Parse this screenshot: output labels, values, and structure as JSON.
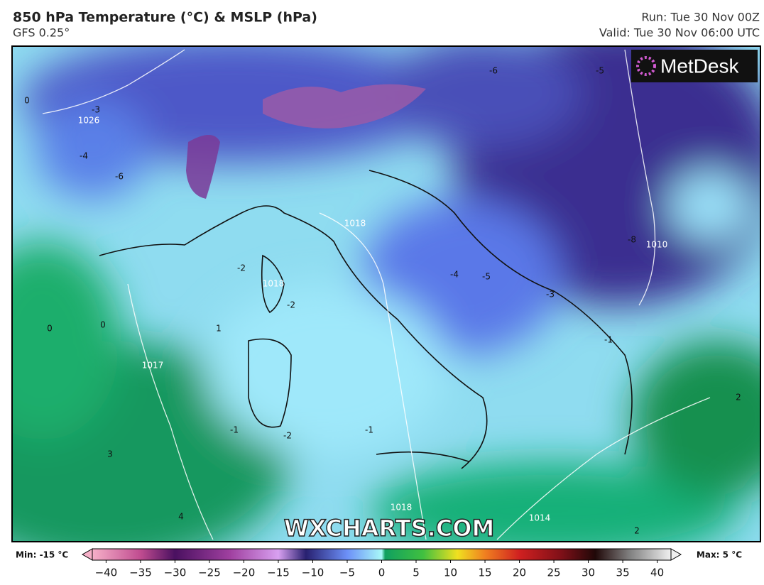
{
  "header": {
    "title": "850 hPa Temperature (°C) & MSLP (hPa)",
    "subtitle": "GFS 0.25°",
    "run": "Run: Tue 30 Nov 00Z",
    "valid": "Valid: Tue 30 Nov 06:00 UTC"
  },
  "logo": "MetDesk",
  "watermark": "WXCHARTS.COM",
  "contour_labels": [
    1026,
    -3,
    0,
    -4,
    -6,
    1018,
    -2,
    1018,
    -2,
    1,
    0,
    0,
    1017,
    -1,
    -2,
    -1,
    1018,
    1014,
    1010,
    -8,
    -5,
    -6,
    -4,
    -5,
    -3,
    -1,
    2,
    3,
    4,
    2
  ],
  "colorbar": {
    "min_label": "Min: -15 °C",
    "max_label": "Max: 5 °C",
    "clim": [
      -42,
      42
    ],
    "ticks": [
      {
        "value": -40,
        "label": "−40"
      },
      {
        "value": -35,
        "label": "−35"
      },
      {
        "value": -30,
        "label": "−30"
      },
      {
        "value": -25,
        "label": "−25"
      },
      {
        "value": -20,
        "label": "−20"
      },
      {
        "value": -15,
        "label": "−15"
      },
      {
        "value": -10,
        "label": "−10"
      },
      {
        "value": -5,
        "label": "−5"
      },
      0,
      5,
      10,
      15,
      20,
      25,
      30,
      35,
      40
    ],
    "stops": [
      {
        "value": -42,
        "color": "#f6b0c8"
      },
      {
        "value": -35,
        "color": "#c04c90"
      },
      {
        "value": -30,
        "color": "#4a1060"
      },
      {
        "value": -22,
        "color": "#a040a0"
      },
      {
        "value": -15,
        "color": "#d8a0f0"
      },
      {
        "value": -11,
        "color": "#282070"
      },
      {
        "value": -5,
        "color": "#6c90f8"
      },
      {
        "value": 0,
        "color": "#a8f8f8"
      },
      {
        "value": 0.5,
        "color": "#10a060"
      },
      {
        "value": 6,
        "color": "#40c040"
      },
      {
        "value": 11,
        "color": "#f0e020"
      },
      {
        "value": 15,
        "color": "#f08020"
      },
      {
        "value": 20,
        "color": "#d02020"
      },
      {
        "value": 26,
        "color": "#801018"
      },
      {
        "value": 31,
        "color": "#200808"
      },
      {
        "value": 36,
        "color": "#808080"
      },
      {
        "value": 42,
        "color": "#f0f0f0"
      }
    ]
  }
}
